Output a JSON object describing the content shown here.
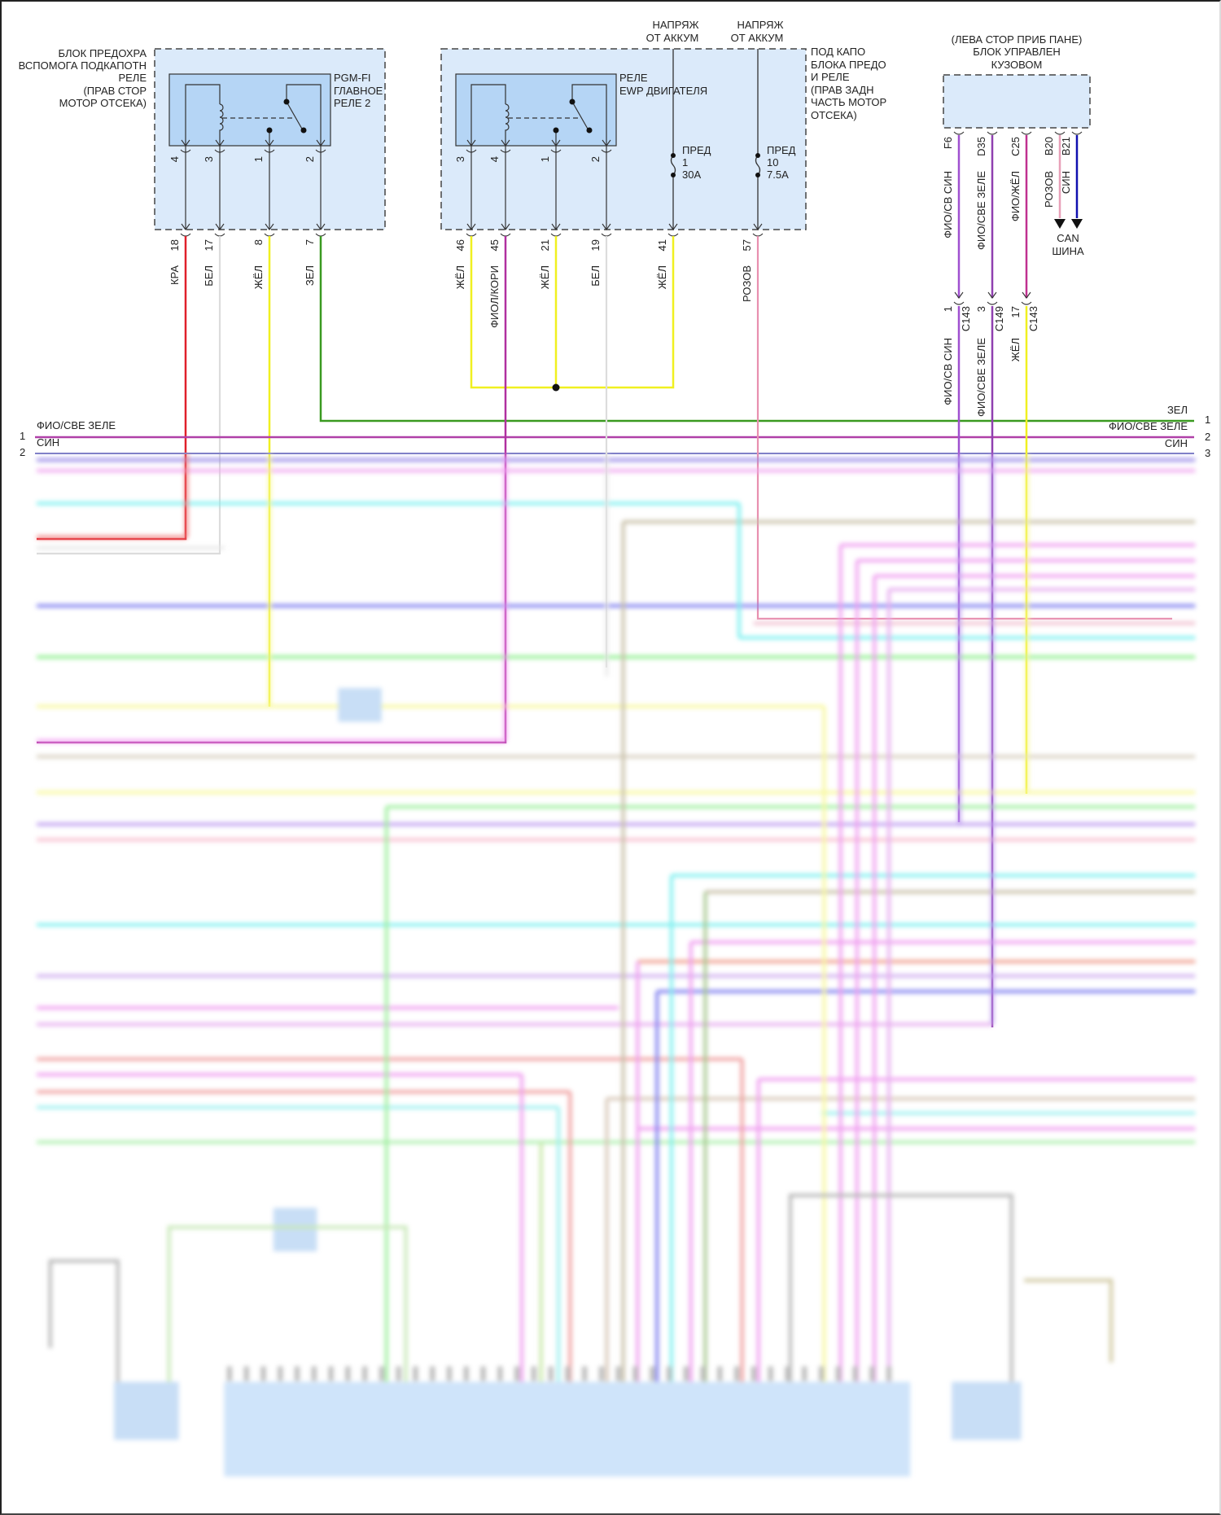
{
  "left_block": {
    "location_lines": [
      "БЛОК ПРЕДОХРА",
      "ВСПОМОГА ПОДКАПОТН",
      "РЕЛЕ",
      "(ПРАВ СТОР",
      "МОТОР ОТСЕКА)"
    ],
    "relay_lines": [
      "PGM-FI",
      "ГЛАВНОЕ",
      "РЕЛЕ 2"
    ],
    "pins": [
      "4",
      "3",
      "1",
      "2"
    ],
    "wires": [
      {
        "num": "18",
        "color_label": "КРА",
        "color": "#e0202a"
      },
      {
        "num": "17",
        "color_label": "БЕЛ",
        "color": "#d8d8d8"
      },
      {
        "num": "8",
        "color_label": "ЖЁЛ",
        "color": "#f0f020"
      },
      {
        "num": "7",
        "color_label": "ЗЕЛ",
        "color": "#3a9a20"
      }
    ]
  },
  "middle_block": {
    "location_lines": [
      "ПОД КАПО",
      "БЛОКА ПРЕДО",
      "И РЕЛЕ",
      "(ПРАВ ЗАДН",
      "ЧАСТЬ МОТОР",
      "ОТСЕКА)"
    ],
    "relay_lines": [
      "РЕЛЕ",
      "EWP ДВИГАТЕЛЯ"
    ],
    "pins": [
      "3",
      "4",
      "1",
      "2"
    ],
    "wires": [
      {
        "num": "46",
        "color_label": "ЖЁЛ",
        "color": "#f0f020"
      },
      {
        "num": "45",
        "color_label": "ФИОЛ/КОРИ",
        "color": "#b030a0"
      },
      {
        "num": "21",
        "color_label": "ЖЁЛ",
        "color": "#f0f020"
      },
      {
        "num": "19",
        "color_label": "БЕЛ",
        "color": "#d8d8d8"
      },
      {
        "num": "41",
        "color_label": "ЖЁЛ",
        "color": "#f0f020"
      },
      {
        "num": "57",
        "color_label": "РОЗОВ",
        "color": "#e890b0"
      }
    ],
    "supply": [
      {
        "lines": [
          "НАПРЯЖ",
          "ОТ АККУМ"
        ],
        "fuse_lines": [
          "ПРЕД",
          "1",
          "30A"
        ]
      },
      {
        "lines": [
          "НАПРЯЖ",
          "ОТ АККУМ"
        ],
        "fuse_lines": [
          "ПРЕД",
          "10",
          "7.5A"
        ]
      }
    ]
  },
  "body_control": {
    "title_lines": [
      "(ЛЕВА СТОР ПРИБ ПАНЕ)",
      "БЛОК УПРАВЛЕН",
      "КУЗОВОМ"
    ],
    "pins": [
      {
        "pin": "F6",
        "color_label": "ФИО/СВ СИН",
        "color": "#a050d0",
        "conn_pin": "1",
        "conn": "C143",
        "lower_label": "ФИО/СВ СИН",
        "lower_color": "#a050d0"
      },
      {
        "pin": "D35",
        "color_label": "ФИО/СВЕ ЗЕЛЕ",
        "color": "#9040b0",
        "conn_pin": "3",
        "conn": "C149",
        "lower_label": "ФИО/СВЕ ЗЕЛЕ",
        "lower_color": "#9040b0"
      },
      {
        "pin": "C25",
        "color_label": "ФИО/ЖЁЛ",
        "color": "#c03090",
        "conn_pin": "17",
        "conn": "C143",
        "lower_label": "ЖЁЛ",
        "lower_color": "#f0f020"
      },
      {
        "pin": "B20",
        "color_label": "РОЗОВ",
        "color": "#e8a0b8"
      },
      {
        "pin": "B21",
        "color_label": "СИН",
        "color": "#1010b0"
      }
    ],
    "can_lines": [
      "CAN",
      "ШИНА"
    ]
  },
  "bus": {
    "left": [
      {
        "num": "1",
        "label": "ФИО/СВЕ ЗЕЛЕ"
      },
      {
        "num": "2",
        "label": "СИН"
      }
    ],
    "right": [
      {
        "num": "1",
        "label": "ЗЕЛ"
      },
      {
        "num": "2",
        "label": "ФИО/СВЕ ЗЕЛЕ"
      },
      {
        "num": "3",
        "label": "СИН"
      }
    ]
  }
}
